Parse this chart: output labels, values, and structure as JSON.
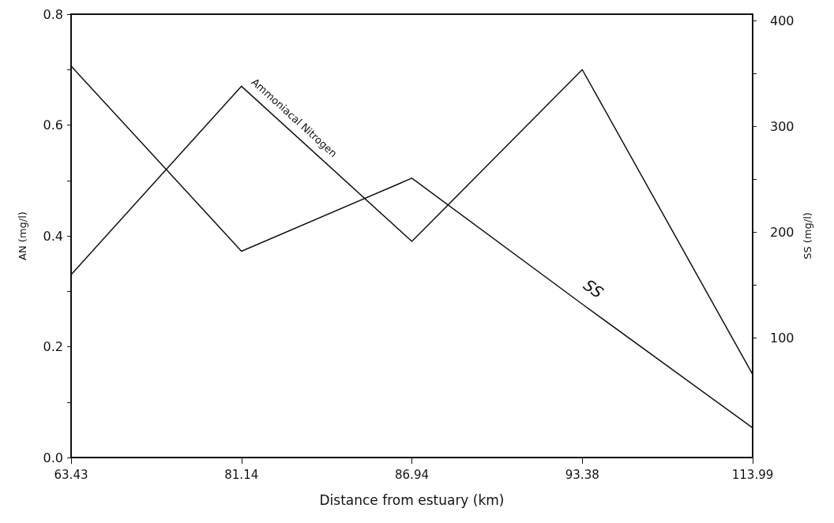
{
  "chart_data": {
    "type": "line",
    "xlabel": "Distance from estuary (km)",
    "ylabel": "AN (mg/l)",
    "y2label": "SS (mg/l)",
    "categories": [
      "63.43",
      "81.14",
      "86.94",
      "93.38",
      "113.99"
    ],
    "series": [
      {
        "name": "Ammoniacal Nitrogen",
        "color": "#111111",
        "values": [
          0.33,
          0.67,
          0.39,
          0.7,
          0.15
        ]
      },
      {
        "name": "SS",
        "color": "#111111",
        "axis": "y2",
        "values": [
          357,
          182,
          251,
          132,
          15
        ]
      }
    ],
    "ylim": [
      0,
      0.8
    ],
    "yticks": [
      {
        "value": 0,
        "label": "0.0"
      },
      {
        "value": 0.1,
        "label": null
      },
      0.2,
      {
        "value": 0.3,
        "label": null
      },
      0.4,
      {
        "value": 0.5,
        "label": null
      },
      0.6,
      {
        "value": 0.7,
        "label": null
      },
      0.8
    ],
    "y2lim": [
      -13,
      406
    ],
    "y2ticks": [
      100,
      {
        "value": 150,
        "label": null
      },
      200,
      {
        "value": 250,
        "label": null
      },
      300,
      {
        "value": 350,
        "label": null
      },
      400
    ],
    "grid": false,
    "legend": false,
    "marker": "none",
    "line_style": "solid"
  }
}
